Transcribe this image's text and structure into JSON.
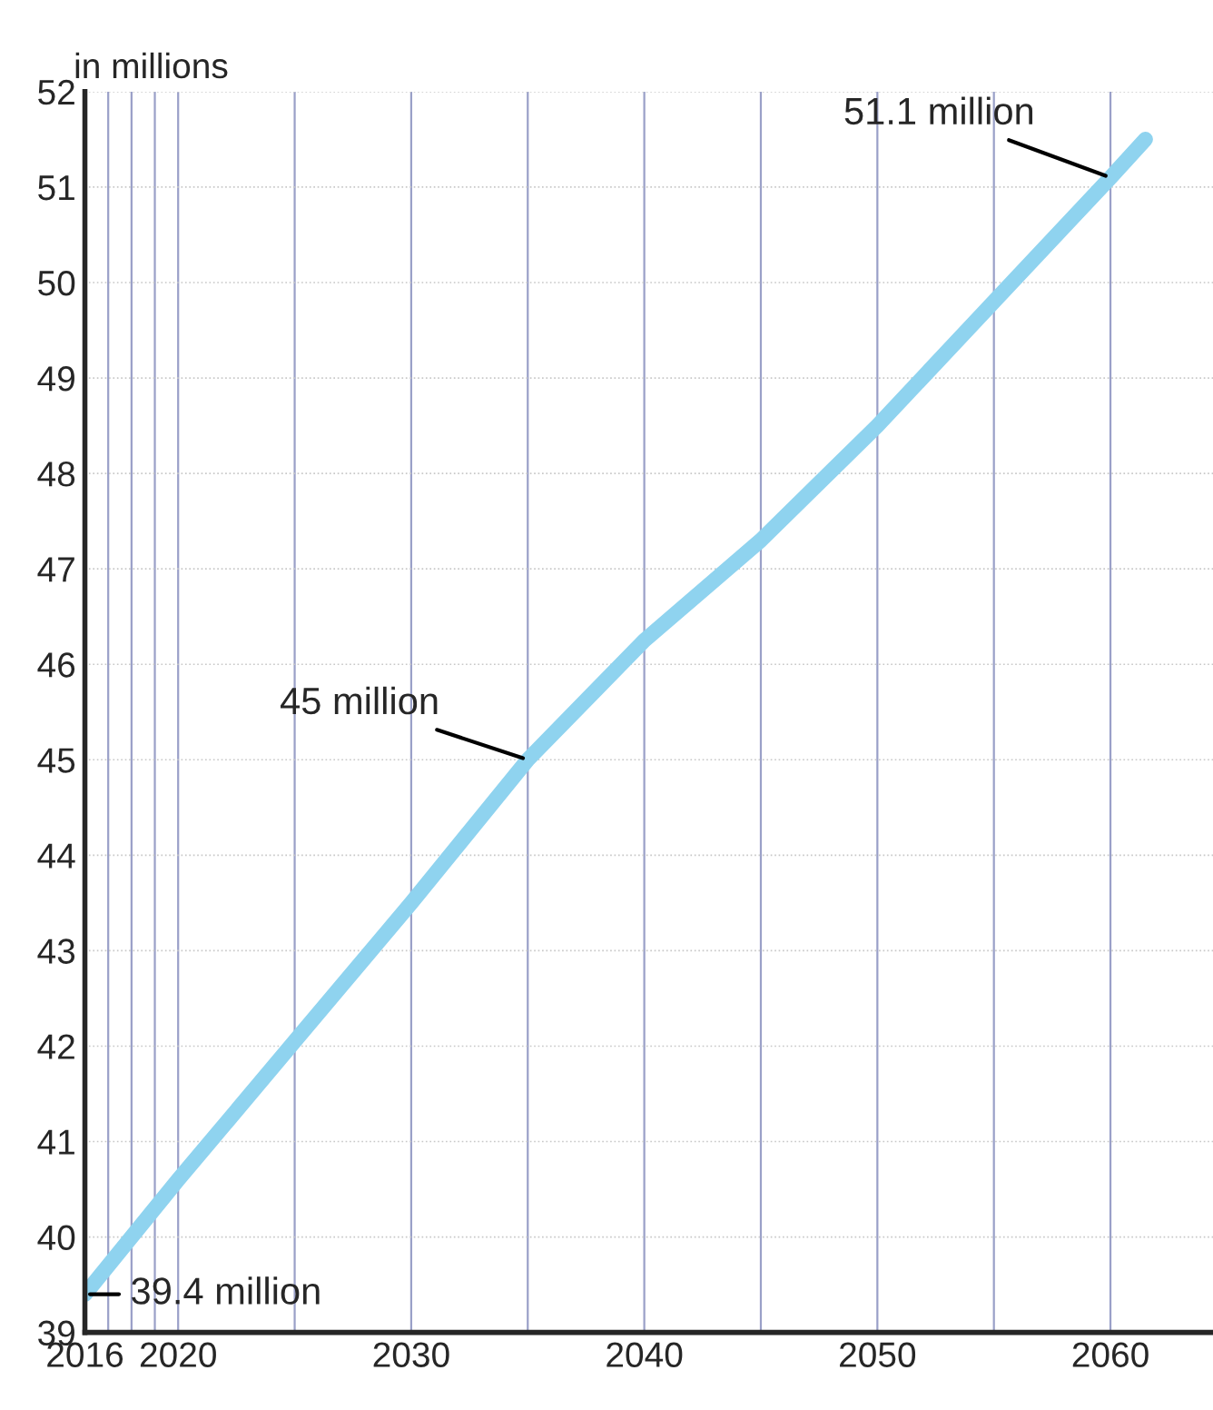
{
  "chart_data": {
    "type": "line",
    "ylabel": "in millions",
    "x": [
      2016,
      2020,
      2025,
      2030,
      2035,
      2040,
      2045,
      2050,
      2055,
      2060,
      2061.5
    ],
    "series": [
      {
        "color": "#8fd3ef",
        "values": [
          39.4,
          40.6,
          42.05,
          43.5,
          45.0,
          46.25,
          47.3,
          48.5,
          49.8,
          51.1,
          51.5
        ]
      }
    ],
    "xlim": [
      2016,
      2064.4
    ],
    "ylim": [
      39,
      52
    ],
    "xticks": [
      2016,
      {
        "value": 2017,
        "label": null
      },
      {
        "value": 2018,
        "label": null
      },
      {
        "value": 2019,
        "label": null
      },
      2020,
      {
        "value": 2025,
        "label": null
      },
      2030,
      {
        "value": 2035,
        "label": null
      },
      2040,
      {
        "value": 2045,
        "label": null
      },
      2050,
      {
        "value": 2055,
        "label": null
      },
      2060
    ],
    "yticks": [
      39,
      40,
      41,
      42,
      43,
      44,
      45,
      46,
      47,
      48,
      49,
      50,
      51,
      52
    ],
    "grid": true,
    "line_style": "solid",
    "marker": "none",
    "annotations": [
      {
        "text": "39.4 million",
        "x": 2016,
        "y": 39.4
      },
      {
        "text": "45 million",
        "x": 2035,
        "y": 45.0
      },
      {
        "text": "51.1 million",
        "x": 2060,
        "y": 51.1
      }
    ]
  }
}
